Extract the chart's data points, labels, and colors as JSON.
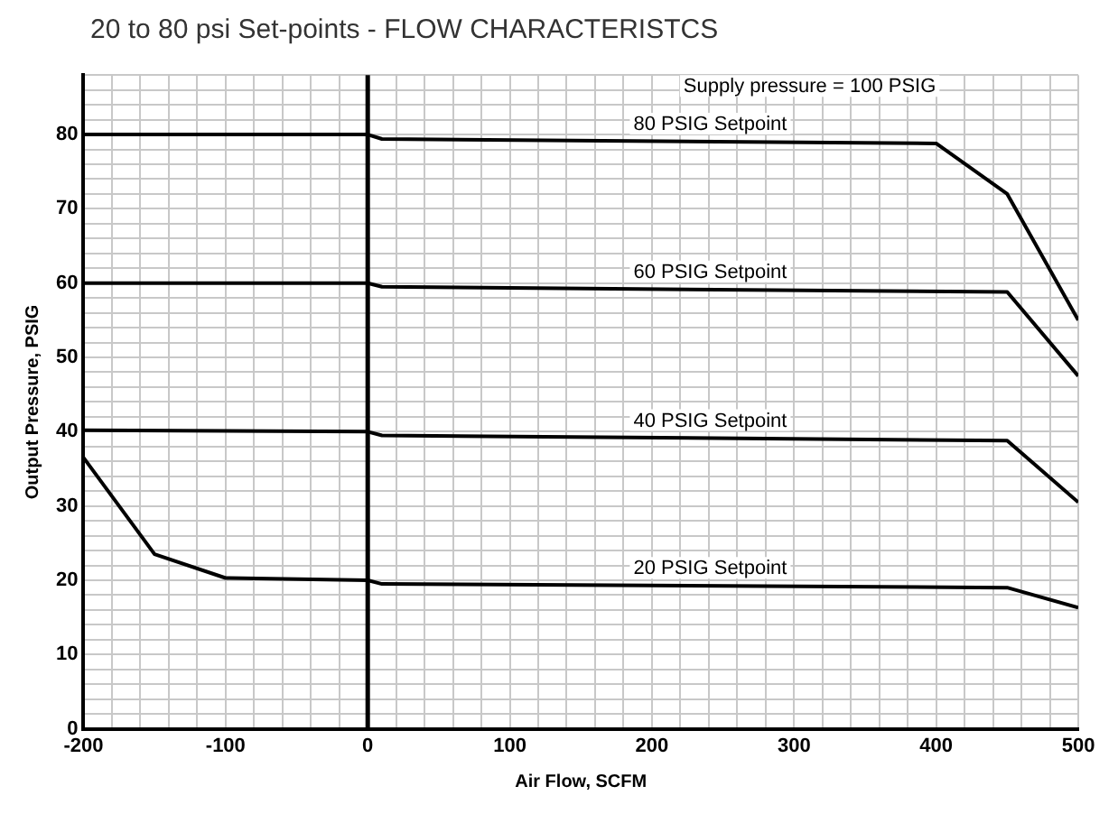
{
  "chart_data": {
    "type": "line",
    "title": "20 to 80 psi Set-points - FLOW CHARACTERISTCS",
    "xlabel": "Air Flow, SCFM",
    "ylabel": "Output Pressure, PSIG",
    "annotations": [
      "Supply pressure = 100 PSIG"
    ],
    "xlim": [
      -200,
      500
    ],
    "ylim": [
      0,
      88
    ],
    "xticks": [
      -200,
      {
        "value": -180,
        "label": null
      },
      {
        "value": -160,
        "label": null
      },
      {
        "value": -140,
        "label": null
      },
      {
        "value": -120,
        "label": null
      },
      -100,
      {
        "value": -80,
        "label": null
      },
      {
        "value": -60,
        "label": null
      },
      {
        "value": -40,
        "label": null
      },
      {
        "value": -20,
        "label": null
      },
      0,
      {
        "value": 20,
        "label": null
      },
      {
        "value": 40,
        "label": null
      },
      {
        "value": 60,
        "label": null
      },
      {
        "value": 80,
        "label": null
      },
      100,
      {
        "value": 120,
        "label": null
      },
      {
        "value": 140,
        "label": null
      },
      {
        "value": 160,
        "label": null
      },
      {
        "value": 180,
        "label": null
      },
      200,
      {
        "value": 220,
        "label": null
      },
      {
        "value": 240,
        "label": null
      },
      {
        "value": 260,
        "label": null
      },
      {
        "value": 280,
        "label": null
      },
      300,
      {
        "value": 320,
        "label": null
      },
      {
        "value": 340,
        "label": null
      },
      {
        "value": 360,
        "label": null
      },
      {
        "value": 380,
        "label": null
      },
      400,
      {
        "value": 420,
        "label": null
      },
      {
        "value": 440,
        "label": null
      },
      {
        "value": 460,
        "label": null
      },
      {
        "value": 480,
        "label": null
      },
      500
    ],
    "yticks": [
      0,
      {
        "value": 2,
        "label": null
      },
      {
        "value": 4,
        "label": null
      },
      {
        "value": 6,
        "label": null
      },
      {
        "value": 8,
        "label": null
      },
      10,
      {
        "value": 12,
        "label": null
      },
      {
        "value": 14,
        "label": null
      },
      {
        "value": 16,
        "label": null
      },
      {
        "value": 18,
        "label": null
      },
      20,
      {
        "value": 22,
        "label": null
      },
      {
        "value": 24,
        "label": null
      },
      {
        "value": 26,
        "label": null
      },
      {
        "value": 28,
        "label": null
      },
      30,
      {
        "value": 32,
        "label": null
      },
      {
        "value": 34,
        "label": null
      },
      {
        "value": 36,
        "label": null
      },
      {
        "value": 38,
        "label": null
      },
      40,
      {
        "value": 42,
        "label": null
      },
      {
        "value": 44,
        "label": null
      },
      {
        "value": 46,
        "label": null
      },
      {
        "value": 48,
        "label": null
      },
      50,
      {
        "value": 52,
        "label": null
      },
      {
        "value": 54,
        "label": null
      },
      {
        "value": 56,
        "label": null
      },
      {
        "value": 58,
        "label": null
      },
      60,
      {
        "value": 62,
        "label": null
      },
      {
        "value": 64,
        "label": null
      },
      {
        "value": 66,
        "label": null
      },
      {
        "value": 68,
        "label": null
      },
      70,
      {
        "value": 72,
        "label": null
      },
      {
        "value": 74,
        "label": null
      },
      {
        "value": 76,
        "label": null
      },
      {
        "value": 78,
        "label": null
      },
      80,
      {
        "value": 82,
        "label": null
      },
      {
        "value": 84,
        "label": null
      },
      {
        "value": 86,
        "label": null
      },
      {
        "value": 88,
        "label": null
      }
    ],
    "grid": true,
    "legend": false,
    "marker": "none",
    "line_style": "solid",
    "ref_lines": [
      {
        "axis": "x",
        "value": 0,
        "color": "#000000"
      }
    ],
    "series": [
      {
        "name": "80 PSIG Setpoint",
        "color": "#000000",
        "x": [
          -200,
          0,
          10,
          400,
          450,
          500
        ],
        "values": [
          80,
          80,
          79.4,
          78.8,
          72,
          55
        ]
      },
      {
        "name": "60 PSIG Setpoint",
        "color": "#000000",
        "x": [
          -200,
          0,
          10,
          450,
          500
        ],
        "values": [
          60,
          60,
          59.5,
          58.8,
          47.5
        ]
      },
      {
        "name": "40 PSIG Setpoint",
        "color": "#000000",
        "x": [
          -200,
          0,
          10,
          450,
          500
        ],
        "values": [
          40.2,
          40,
          39.5,
          38.8,
          30.5
        ]
      },
      {
        "name": "20 PSIG Setpoint",
        "color": "#000000",
        "x": [
          -200,
          -150,
          -100,
          0,
          10,
          450,
          500
        ],
        "values": [
          36.5,
          23.5,
          20.3,
          20,
          19.5,
          19,
          16.3
        ]
      }
    ]
  }
}
